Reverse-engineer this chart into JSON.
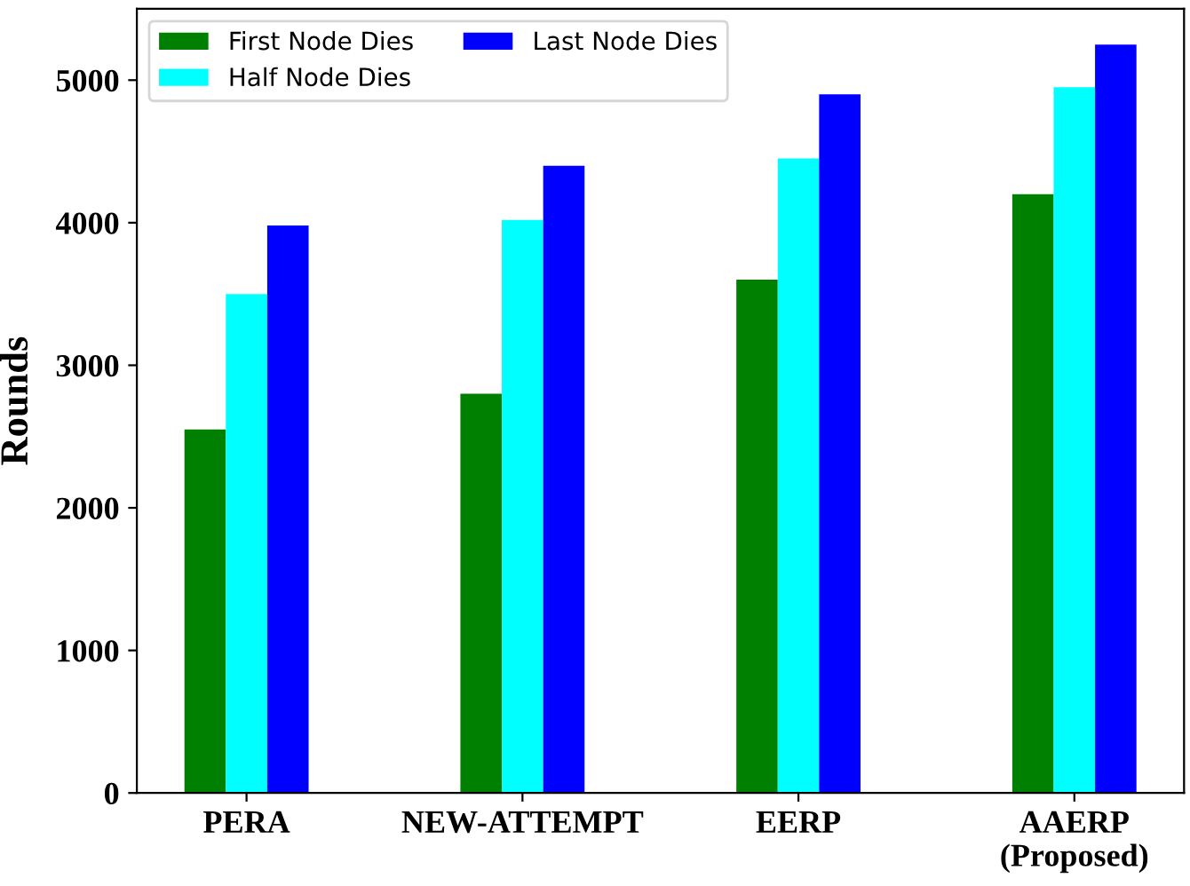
{
  "chart_data": {
    "type": "bar",
    "ylabel": "Rounds",
    "categories": [
      "PERA",
      "NEW-ATTEMPT",
      "EERP",
      "AAERP\n(Proposed)"
    ],
    "series": [
      {
        "name": "First Node Dies",
        "color": "#008000",
        "values": [
          2550,
          2800,
          3600,
          4200
        ]
      },
      {
        "name": "Half Node Dies",
        "color": "#00ffff",
        "values": [
          3500,
          4020,
          4450,
          4950
        ]
      },
      {
        "name": "Last Node Dies",
        "color": "#0000ff",
        "values": [
          3980,
          4400,
          4900,
          5250
        ]
      }
    ],
    "ylim": [
      0,
      5500
    ],
    "yticks": [
      0,
      1000,
      2000,
      3000,
      4000,
      5000
    ],
    "grid": false,
    "legend": "top left"
  }
}
